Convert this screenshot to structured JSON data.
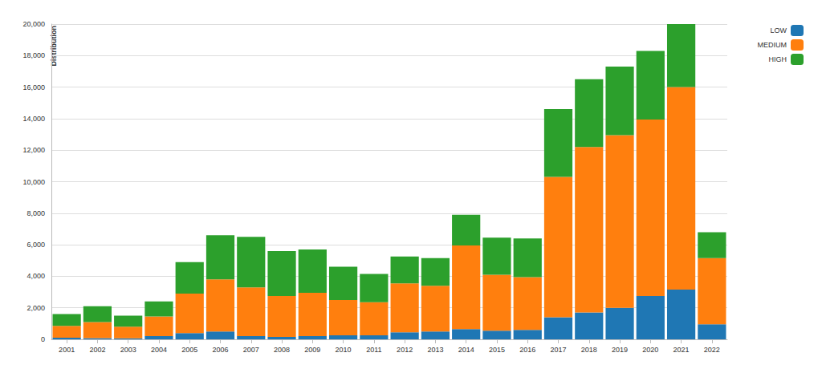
{
  "chart_data": {
    "type": "bar",
    "stacked": true,
    "grid": true,
    "legend": "top-right",
    "y_label": "Distribution",
    "categories": [
      "2001",
      "2002",
      "2003",
      "2004",
      "2005",
      "2006",
      "2007",
      "2008",
      "2009",
      "2010",
      "2011",
      "2012",
      "2013",
      "2014",
      "2015",
      "2016",
      "2017",
      "2018",
      "2019",
      "2020",
      "2021",
      "2022"
    ],
    "series": [
      {
        "name": "LOW",
        "color": "#1f77b4",
        "values": [
          100,
          80,
          60,
          200,
          400,
          500,
          200,
          150,
          200,
          250,
          250,
          450,
          500,
          650,
          550,
          600,
          1400,
          1700,
          2000,
          2750,
          3150,
          950
        ]
      },
      {
        "name": "MEDIUM",
        "color": "#ff7f0e",
        "values": [
          750,
          1020,
          740,
          1250,
          2500,
          3300,
          3100,
          2600,
          2750,
          2250,
          2100,
          3100,
          2900,
          5300,
          3550,
          3350,
          8900,
          10500,
          10950,
          11200,
          12850,
          4200
        ]
      },
      {
        "name": "HIGH",
        "color": "#2ca02c",
        "values": [
          750,
          1000,
          700,
          950,
          2000,
          2800,
          3200,
          2850,
          2750,
          2100,
          1800,
          1700,
          1750,
          1950,
          2350,
          2450,
          4300,
          4300,
          4350,
          4350,
          4000,
          1650
        ]
      }
    ],
    "ylim": [
      0,
      20000
    ],
    "yticks": [
      0,
      {
        "value": 2000,
        "label": "2,000"
      },
      {
        "value": 4000,
        "label": "4,000"
      },
      {
        "value": 6000,
        "label": "6,000"
      },
      {
        "value": 8000,
        "label": "8,000"
      },
      {
        "value": 10000,
        "label": "10,000"
      },
      {
        "value": 12000,
        "label": "12,000"
      },
      {
        "value": 14000,
        "label": "14,000"
      },
      {
        "value": 16000,
        "label": "16,000"
      },
      {
        "value": 18000,
        "label": "18,000"
      },
      {
        "value": 20000,
        "label": "20,000"
      }
    ]
  }
}
